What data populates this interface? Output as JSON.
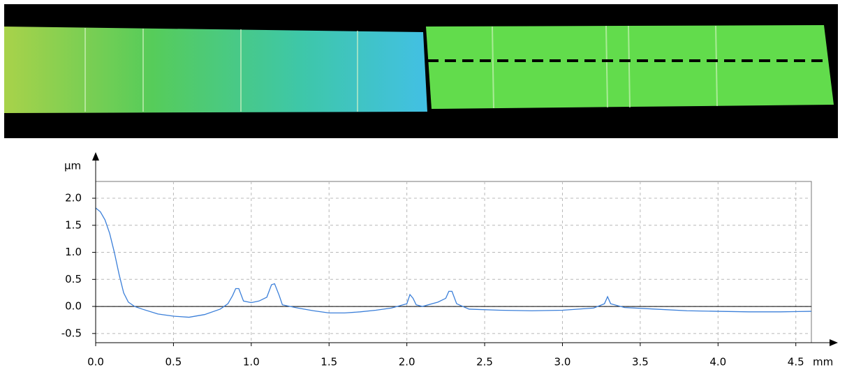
{
  "chart_data": {
    "type": "line",
    "xlabel": "mm",
    "ylabel": "µm",
    "xlim": [
      0,
      4.6
    ],
    "ylim": [
      -0.67,
      2.31
    ],
    "xticks": [
      {
        "value": 0,
        "label": "0.0"
      },
      0.5,
      {
        "value": 1,
        "label": "1.0"
      },
      1.5,
      {
        "value": 2,
        "label": "2.0"
      },
      2.5,
      {
        "value": 3,
        "label": "3.0"
      },
      3.5,
      {
        "value": 4,
        "label": "4.0"
      },
      4.5
    ],
    "yticks": [
      -0.5,
      {
        "value": 0,
        "label": "0.0"
      },
      0.5,
      {
        "value": 1,
        "label": "1.0"
      },
      1.5,
      {
        "value": 2,
        "label": "2.0"
      }
    ],
    "grid": true,
    "series": [
      {
        "color": "#3b7fd9",
        "x": [
          0,
          0.03,
          0.06,
          0.09,
          0.12,
          0.15,
          0.18,
          0.21,
          0.25,
          0.3,
          0.4,
          0.5,
          0.6,
          0.7,
          0.8,
          0.85,
          0.88,
          0.9,
          0.92,
          0.95,
          1.0,
          1.05,
          1.1,
          1.13,
          1.15,
          1.18,
          1.2,
          1.3,
          1.4,
          1.5,
          1.6,
          1.7,
          1.8,
          1.9,
          2.0,
          2.02,
          2.04,
          2.06,
          2.1,
          2.2,
          2.25,
          2.27,
          2.29,
          2.32,
          2.4,
          2.6,
          2.8,
          3.0,
          3.2,
          3.27,
          3.29,
          3.31,
          3.4,
          3.6,
          3.8,
          4.0,
          4.2,
          4.4,
          4.6
        ],
        "values": [
          1.82,
          1.75,
          1.6,
          1.35,
          1.0,
          0.6,
          0.25,
          0.08,
          0.0,
          -0.05,
          -0.14,
          -0.18,
          -0.2,
          -0.15,
          -0.05,
          0.05,
          0.2,
          0.33,
          0.33,
          0.1,
          0.07,
          0.1,
          0.17,
          0.4,
          0.42,
          0.2,
          0.03,
          -0.03,
          -0.08,
          -0.12,
          -0.12,
          -0.1,
          -0.07,
          -0.03,
          0.05,
          0.22,
          0.15,
          0.03,
          0.0,
          0.08,
          0.15,
          0.28,
          0.28,
          0.05,
          -0.05,
          -0.07,
          -0.08,
          -0.07,
          -0.03,
          0.05,
          0.18,
          0.05,
          -0.02,
          -0.05,
          -0.08,
          -0.09,
          -0.1,
          -0.1,
          -0.09
        ]
      }
    ]
  }
}
